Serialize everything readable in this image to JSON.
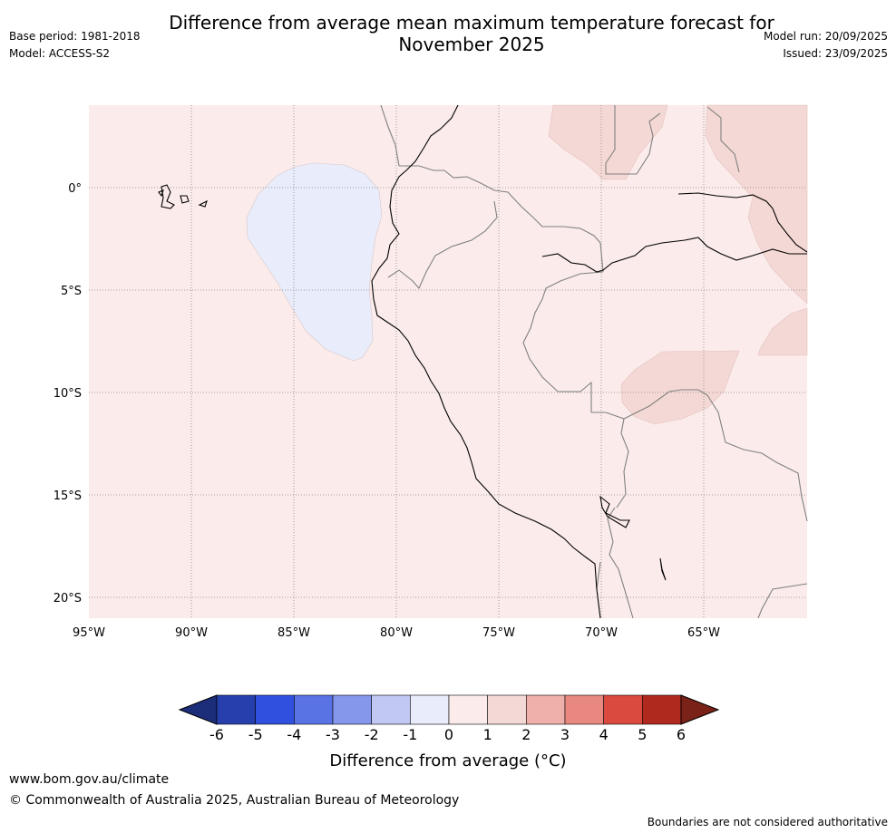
{
  "header": {
    "title_line1": "Difference from average mean maximum temperature forecast for",
    "title_line2": "November 2025",
    "base_period": "Base period: 1981-2018",
    "model": "Model: ACCESS-S2",
    "model_run": "Model run: 20/09/2025",
    "issued": "Issued: 23/09/2025"
  },
  "map": {
    "lat_labels": [
      "0°",
      "5°S",
      "10°S",
      "15°S",
      "20°S"
    ],
    "lon_labels": [
      "95°W",
      "90°W",
      "85°W",
      "80°W",
      "75°W",
      "70°W",
      "65°W"
    ],
    "colors": {
      "background_anomaly": "#fbeceb",
      "warm_anomaly": "#f4d8d5",
      "cool_anomaly": "#e9ecfb",
      "coastline": "#000000",
      "border": "#808080",
      "grid": "#888888"
    }
  },
  "colorbar": {
    "ticks": [
      "-6",
      "-5",
      "-4",
      "-3",
      "-2",
      "-1",
      "0",
      "1",
      "2",
      "3",
      "4",
      "5",
      "6"
    ],
    "label": "Difference from average (°C)",
    "low_extend_color": "#1c2d7a",
    "high_extend_color": "#7a2218",
    "bin_colors": [
      "#263fad",
      "#3050e0",
      "#5a73e4",
      "#8497ea",
      "#c1c8f4",
      "#e9ecfb",
      "#fbeceb",
      "#f4d8d5",
      "#efb0aa",
      "#e88881",
      "#db4a3e",
      "#b0291f"
    ]
  },
  "footer": {
    "website": "www.bom.gov.au/climate",
    "copyright": "© Commonwealth of Australia 2025, Australian Bureau of Meteorology",
    "disclaimer": "Boundaries are not considered authoritative"
  }
}
